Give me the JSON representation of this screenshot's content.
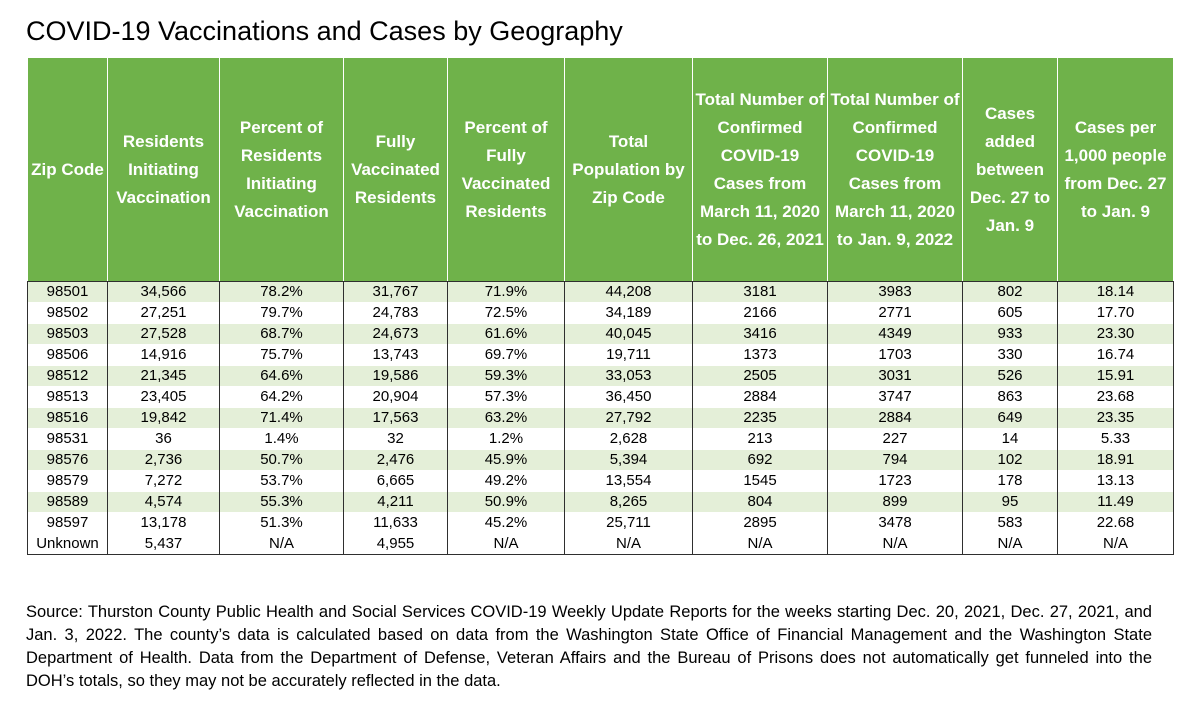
{
  "title": "COVID-19 Vaccinations and Cases by Geography",
  "table": {
    "headers": [
      "Zip Code",
      "Residents Initiating Vaccination",
      "Percent of Residents Initiating Vaccination",
      "Fully Vaccinated Residents",
      "Percent of Fully Vaccinated Residents",
      "Total Population by Zip Code",
      "Total Number of Confirmed COVID-19 Cases from March 11, 2020 to Dec. 26, 2021",
      "Total Number of Confirmed COVID-19 Cases from March 11, 2020 to Jan. 9, 2022",
      "Cases added between Dec. 27 to Jan. 9",
      "Cases per 1,000 people from Dec. 27 to Jan. 9"
    ],
    "rows": [
      [
        "98501",
        "34,566",
        "78.2%",
        "31,767",
        "71.9%",
        "44,208",
        "3181",
        "3983",
        "802",
        "18.14"
      ],
      [
        "98502",
        "27,251",
        "79.7%",
        "24,783",
        "72.5%",
        "34,189",
        "2166",
        "2771",
        "605",
        "17.70"
      ],
      [
        "98503",
        "27,528",
        "68.7%",
        "24,673",
        "61.6%",
        "40,045",
        "3416",
        "4349",
        "933",
        "23.30"
      ],
      [
        "98506",
        "14,916",
        "75.7%",
        "13,743",
        "69.7%",
        "19,711",
        "1373",
        "1703",
        "330",
        "16.74"
      ],
      [
        "98512",
        "21,345",
        "64.6%",
        "19,586",
        "59.3%",
        "33,053",
        "2505",
        "3031",
        "526",
        "15.91"
      ],
      [
        "98513",
        "23,405",
        "64.2%",
        "20,904",
        "57.3%",
        "36,450",
        "2884",
        "3747",
        "863",
        "23.68"
      ],
      [
        "98516",
        "19,842",
        "71.4%",
        "17,563",
        "63.2%",
        "27,792",
        "2235",
        "2884",
        "649",
        "23.35"
      ],
      [
        "98531",
        "36",
        "1.4%",
        "32",
        "1.2%",
        "2,628",
        "213",
        "227",
        "14",
        "5.33"
      ],
      [
        "98576",
        "2,736",
        "50.7%",
        "2,476",
        "45.9%",
        "5,394",
        "692",
        "794",
        "102",
        "18.91"
      ],
      [
        "98579",
        "7,272",
        "53.7%",
        "6,665",
        "49.2%",
        "13,554",
        "1545",
        "1723",
        "178",
        "13.13"
      ],
      [
        "98589",
        "4,574",
        "55.3%",
        "4,211",
        "50.9%",
        "8,265",
        "804",
        "899",
        "95",
        "11.49"
      ],
      [
        "98597",
        "13,178",
        "51.3%",
        "11,633",
        "45.2%",
        "25,711",
        "2895",
        "3478",
        "583",
        "22.68"
      ],
      [
        "Unknown",
        "5,437",
        "N/A",
        "4,955",
        "N/A",
        "N/A",
        "N/A",
        "N/A",
        "N/A",
        "N/A"
      ]
    ]
  },
  "source": "Source: Thurston County Public Health and Social Services COVID-19 Weekly Update Reports for the weeks starting Dec. 20, 2021, Dec. 27, 2021, and Jan. 3, 2022. The county’s data is calculated based on data from the Washington State Office of Financial Management and the Washington State Department of Health. Data from the Department of Defense, Veteran Affairs and the Bureau of Prisons does not automatically get funneled into the DOH’s totals, so they may not be accurately reflected in the data.",
  "colors": {
    "header_bg": "#6fb24a",
    "band_bg": "#e4efd8"
  }
}
